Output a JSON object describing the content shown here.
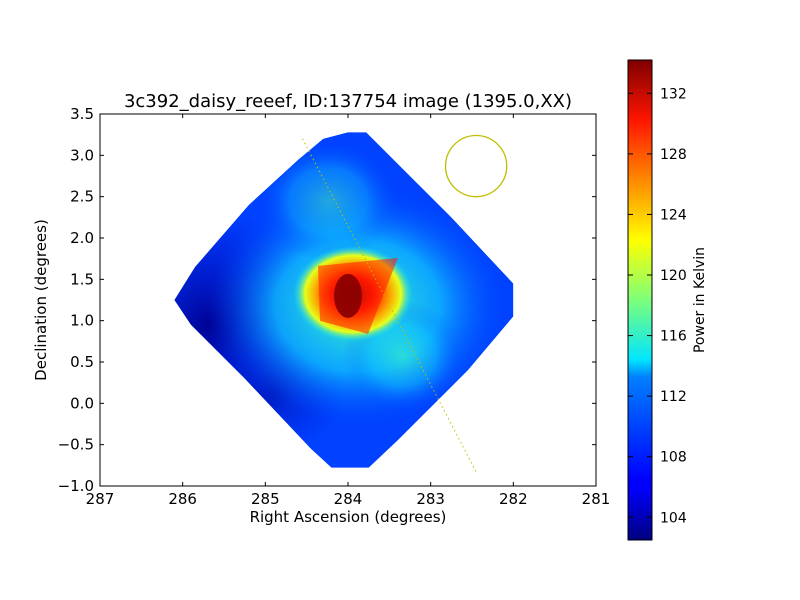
{
  "chart_data": {
    "type": "heatmap",
    "title": "3c392_daisy_reeef, ID:137754 image (1395.0,XX)",
    "xlabel": "Right Ascension (degrees)",
    "ylabel": "Declination (degrees)",
    "colorbar_label": "Power in Kelvin",
    "xlim": [
      287,
      281
    ],
    "ylim": [
      -1.0,
      3.5
    ],
    "x_ticks": [
      {
        "value": 287,
        "label": "287"
      },
      {
        "value": 286,
        "label": "286"
      },
      {
        "value": 285,
        "label": "285"
      },
      {
        "value": 284,
        "label": "284"
      },
      {
        "value": 283,
        "label": "283"
      },
      {
        "value": 282,
        "label": "282"
      },
      {
        "value": 281,
        "label": "281"
      }
    ],
    "y_ticks": [
      {
        "value": -1.0,
        "label": "−1.0"
      },
      {
        "value": -0.5,
        "label": "−0.5"
      },
      {
        "value": 0.0,
        "label": "0.0"
      },
      {
        "value": 0.5,
        "label": "0.5"
      },
      {
        "value": 1.0,
        "label": "1.0"
      },
      {
        "value": 1.5,
        "label": "1.5"
      },
      {
        "value": 2.0,
        "label": "2.0"
      },
      {
        "value": 2.5,
        "label": "2.5"
      },
      {
        "value": 3.0,
        "label": "3.0"
      },
      {
        "value": 3.5,
        "label": "3.5"
      }
    ],
    "colorbar": {
      "range": [
        102.5,
        134.2
      ],
      "colormap": "jet",
      "ticks": [
        {
          "value": 104,
          "label": "104"
        },
        {
          "value": 108,
          "label": "108"
        },
        {
          "value": 112,
          "label": "112"
        },
        {
          "value": 116,
          "label": "116"
        },
        {
          "value": 120,
          "label": "120"
        },
        {
          "value": 124,
          "label": "124"
        },
        {
          "value": 128,
          "label": "128"
        },
        {
          "value": 132,
          "label": "132"
        }
      ]
    },
    "map": {
      "coverage_polygon": [
        [
          284.0,
          3.28
        ],
        [
          283.78,
          3.28
        ],
        [
          283.4,
          2.9
        ],
        [
          282.75,
          2.25
        ],
        [
          282.0,
          1.45
        ],
        [
          282.0,
          1.05
        ],
        [
          282.55,
          0.4
        ],
        [
          283.4,
          -0.45
        ],
        [
          283.75,
          -0.78
        ],
        [
          284.2,
          -0.78
        ],
        [
          284.45,
          -0.55
        ],
        [
          285.25,
          0.3
        ],
        [
          285.9,
          0.95
        ],
        [
          286.1,
          1.25
        ],
        [
          285.85,
          1.65
        ],
        [
          285.2,
          2.4
        ],
        [
          284.6,
          2.95
        ],
        [
          284.3,
          3.2
        ]
      ],
      "background_level": 108.5,
      "edge_level": 103.2,
      "peak": {
        "ra": 284.0,
        "dec": 1.3,
        "value": 134
      }
    },
    "overlays": {
      "scan_line": {
        "from": [
          284.55,
          3.2
        ],
        "to": [
          282.45,
          -0.83
        ],
        "color": "#bfbf00",
        "style": "dotted"
      },
      "beam_circle": {
        "ra": 282.45,
        "dec": 2.87,
        "radius_deg": 0.37,
        "color": "#bfbf00"
      }
    }
  }
}
